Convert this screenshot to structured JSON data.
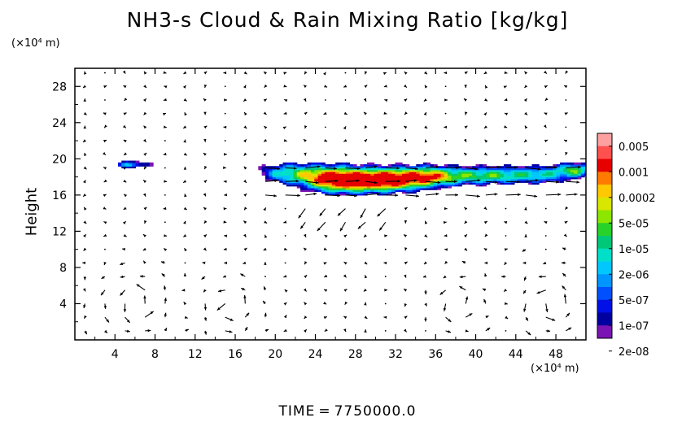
{
  "chart_data": {
    "type": "heatmap",
    "title": "NH3-s Cloud & Rain Mixing Ratio [kg/kg]",
    "ylabel": "Height",
    "x_unit": "(×10⁴ m)",
    "y_unit": "(×10⁴ m)",
    "xlim": [
      0,
      51
    ],
    "ylim": [
      0,
      30
    ],
    "x_ticks": [
      "4",
      "8",
      "12",
      "16",
      "20",
      "24",
      "28",
      "32",
      "36",
      "40",
      "44",
      "48"
    ],
    "y_ticks": [
      "4",
      "8",
      "12",
      "16",
      "20",
      "24",
      "28"
    ],
    "colorbar": {
      "labels": [
        "0.005",
        "0.001",
        "0.0002",
        "5e-05",
        "1e-05",
        "2e-06",
        "5e-07",
        "1e-07",
        "2e-08"
      ],
      "colors": [
        "#ffa0a0",
        "#ff5050",
        "#e60000",
        "#ff7a00",
        "#ffc800",
        "#d8e600",
        "#8ce600",
        "#28d228",
        "#00c878",
        "#00e0c8",
        "#00c8ff",
        "#0096ff",
        "#0050ff",
        "#0010e6",
        "#0000a0",
        "#7a14b4"
      ]
    },
    "cloud_layer": {
      "height_range": [
        16,
        20
      ],
      "x_range": [
        2,
        51
      ],
      "max_regions": [
        {
          "x": 26,
          "y": 17,
          "value": "0.001"
        },
        {
          "x": 31,
          "y": 17,
          "value": "0.001"
        }
      ]
    },
    "time_prefix": "TIME",
    "time_equals": "=",
    "time_value": "7750000.0"
  }
}
